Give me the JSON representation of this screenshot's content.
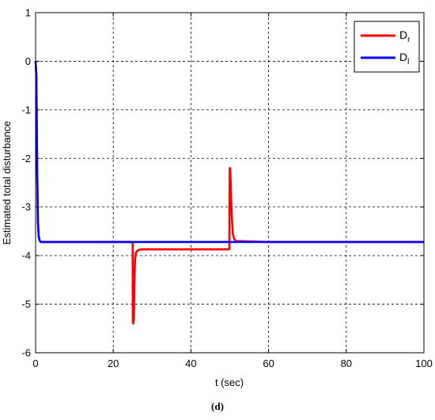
{
  "chart_data": {
    "type": "line",
    "title": "",
    "xlabel": "t (sec)",
    "ylabel": "Estimated total disturbance",
    "xlim": [
      0,
      100
    ],
    "ylim": [
      -6,
      1
    ],
    "xticks": [
      0,
      20,
      40,
      60,
      80,
      100
    ],
    "yticks": [
      1,
      0,
      -1,
      -2,
      -3,
      -4,
      -5,
      -6
    ],
    "grid": true,
    "legend_position": "top-right",
    "caption": "(d)",
    "series": [
      {
        "name": "D",
        "name_sub": "r",
        "color": "#ff0000",
        "x": [
          0,
          0.2,
          0.4,
          0.6,
          0.8,
          1.0,
          1.3,
          1.8,
          25.0,
          25.05,
          25.15,
          25.3,
          25.45,
          25.6,
          25.8,
          26.2,
          26.8,
          27.5,
          30,
          40,
          49.9,
          50.0,
          50.1,
          50.25,
          50.4,
          50.6,
          50.8,
          51.1,
          51.6,
          60,
          80,
          100
        ],
        "y": [
          0,
          -0.3,
          -2.2,
          -3.3,
          -3.6,
          -3.68,
          -3.72,
          -3.72,
          -3.72,
          -5.35,
          -5.4,
          -5.3,
          -4.6,
          -4.1,
          -3.95,
          -3.9,
          -3.88,
          -3.87,
          -3.87,
          -3.87,
          -3.87,
          -2.2,
          -2.2,
          -2.5,
          -2.9,
          -3.3,
          -3.55,
          -3.65,
          -3.7,
          -3.72,
          -3.72,
          -3.72
        ]
      },
      {
        "name": "D",
        "name_sub": "l",
        "color": "#0000ff",
        "x": [
          0,
          0.2,
          0.4,
          0.6,
          0.8,
          1.0,
          1.3,
          1.8,
          25,
          50,
          75,
          100
        ],
        "y": [
          0,
          -0.3,
          -2.2,
          -3.3,
          -3.6,
          -3.68,
          -3.72,
          -3.72,
          -3.72,
          -3.72,
          -3.72,
          -3.72
        ]
      }
    ]
  }
}
